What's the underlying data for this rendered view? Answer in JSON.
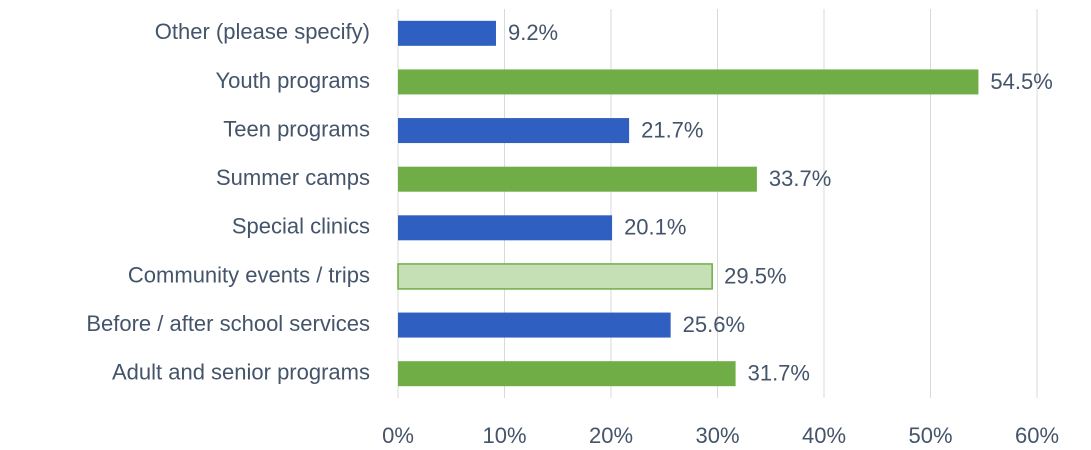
{
  "chart_data": {
    "type": "barh",
    "categories": [
      "Other (please specify)",
      "Youth programs",
      "Teen programs",
      "Summer camps",
      "Special clinics",
      "Community events / trips",
      "Before / after school services",
      "Adult and senior programs"
    ],
    "values": [
      9.2,
      54.5,
      21.7,
      33.7,
      20.1,
      29.5,
      25.6,
      31.7
    ],
    "value_labels": [
      "9.2%",
      "54.5%",
      "21.7%",
      "33.7%",
      "20.1%",
      "29.5%",
      "25.6%",
      "31.7%"
    ],
    "colors": [
      "#2f5fc0",
      "#70ad47",
      "#2f5fc0",
      "#70ad47",
      "#2f5fc0",
      "#c5e0b4",
      "#2f5fc0",
      "#70ad47"
    ],
    "xlim": [
      0,
      60
    ],
    "xticks": [
      {
        "value": 0,
        "label": "0%"
      },
      {
        "value": 10,
        "label": "10%"
      },
      {
        "value": 20,
        "label": "20%"
      },
      {
        "value": 30,
        "label": "30%"
      },
      {
        "value": 40,
        "label": "40%"
      },
      {
        "value": 50,
        "label": "50%"
      },
      {
        "value": 60,
        "label": "60%"
      }
    ],
    "grid": true
  }
}
